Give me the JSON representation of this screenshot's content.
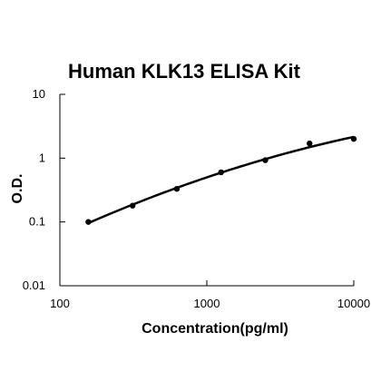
{
  "chart_data": {
    "type": "scatter",
    "title": "Human KLK13 ELISA Kit",
    "xlabel": "Concentration(pg/ml)",
    "ylabel": "O.D.",
    "x_scale": "log",
    "y_scale": "log",
    "xlim": [
      100,
      10000
    ],
    "ylim": [
      0.01,
      10
    ],
    "x_ticks": [
      "100",
      "1000",
      "10000"
    ],
    "y_ticks": [
      "0.01",
      "0.1",
      "1",
      "10"
    ],
    "grid": false,
    "legend": "none",
    "series": [
      {
        "x": [
          156.25,
          312.5,
          625,
          1250,
          2500,
          5000,
          10000
        ],
        "y": [
          0.1,
          0.18,
          0.33,
          0.6,
          0.93,
          1.7,
          2.0
        ],
        "marker": "circle",
        "fit_line": "smooth"
      }
    ],
    "colors": {
      "points": "#000000",
      "line": "#000000",
      "axis": "#000000"
    }
  }
}
